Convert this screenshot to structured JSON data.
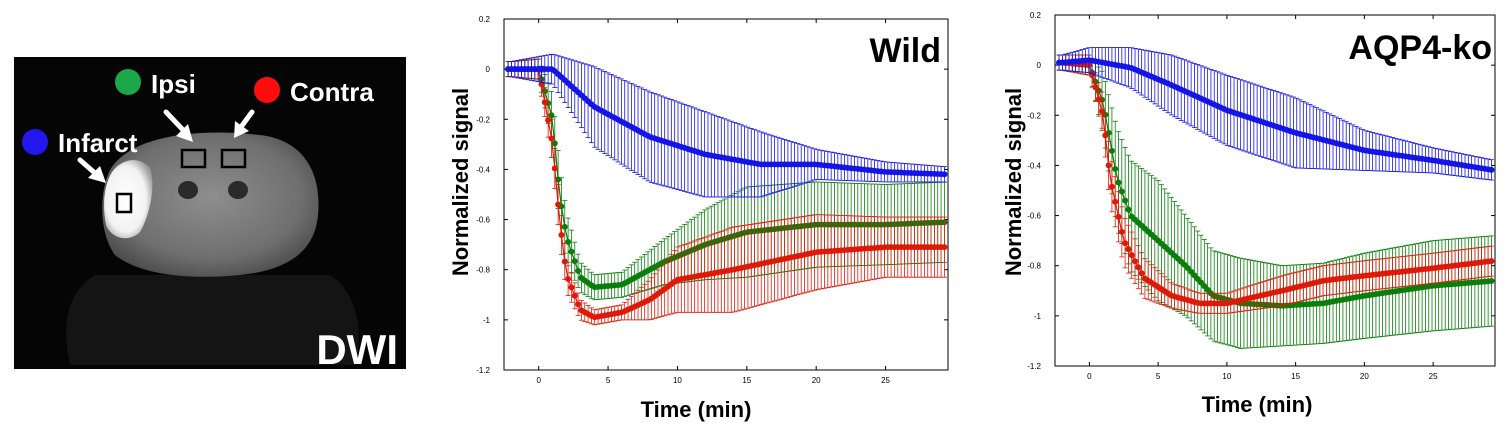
{
  "dwi_panel": {
    "legend": [
      {
        "label": "Ipsi",
        "color": "#1aa84a"
      },
      {
        "label": "Contra",
        "color": "#ff0d0d"
      },
      {
        "label": "Infarct",
        "color": "#2317f0"
      }
    ],
    "caption": "DWI"
  },
  "colors": {
    "infarct": "#1414e6",
    "ipsi": "#0a7d0a",
    "contra": "#dd1a08"
  },
  "chart_data": [
    {
      "type": "line",
      "title": "Wild",
      "xlabel": "Time (min)",
      "ylabel": "Normalized signal",
      "xlim": [
        -2.5,
        29.5
      ],
      "ylim": [
        -1.2,
        0.2
      ],
      "xticks": [
        0,
        5,
        10,
        15,
        20,
        25
      ],
      "yticks": [
        0.2,
        0,
        -0.2,
        -0.4,
        -0.6,
        -0.8,
        -1,
        -1.2
      ],
      "series": [
        {
          "name": "Infarct",
          "key": "infarct",
          "x": [
            -2,
            1,
            4,
            8,
            12,
            16,
            20,
            25,
            29.5
          ],
          "y": [
            0.0,
            0.0,
            -0.15,
            -0.27,
            -0.34,
            -0.38,
            -0.38,
            -0.41,
            -0.42
          ],
          "err": [
            0.03,
            0.06,
            0.16,
            0.18,
            0.17,
            0.13,
            0.06,
            0.04,
            0.03
          ]
        },
        {
          "name": "Ipsi",
          "key": "ipsi",
          "x": [
            -2,
            0,
            1,
            1.5,
            2,
            3,
            4,
            6,
            9,
            12,
            15,
            20,
            25,
            29.5
          ],
          "y": [
            0.0,
            0.0,
            -0.2,
            -0.5,
            -0.67,
            -0.83,
            -0.87,
            -0.86,
            -0.77,
            -0.7,
            -0.65,
            -0.62,
            -0.62,
            -0.61
          ],
          "err": [
            0.03,
            0.04,
            0.1,
            0.12,
            0.1,
            0.06,
            0.05,
            0.05,
            0.09,
            0.14,
            0.18,
            0.17,
            0.16,
            0.16
          ]
        },
        {
          "name": "Contra",
          "key": "contra",
          "x": [
            -2,
            0,
            1,
            1.5,
            2,
            3,
            4,
            6,
            8,
            10,
            14,
            20,
            25,
            29.5
          ],
          "y": [
            0.0,
            0.0,
            -0.3,
            -0.6,
            -0.82,
            -0.96,
            -0.99,
            -0.97,
            -0.92,
            -0.84,
            -0.8,
            -0.73,
            -0.71,
            -0.71
          ],
          "err": [
            0.03,
            0.04,
            0.08,
            0.08,
            0.07,
            0.04,
            0.03,
            0.03,
            0.08,
            0.13,
            0.17,
            0.15,
            0.12,
            0.12
          ]
        }
      ]
    },
    {
      "type": "line",
      "title": "AQP4-ko",
      "xlabel": "Time (min)",
      "ylabel": "Normalized signal",
      "xlim": [
        -2.5,
        29.5
      ],
      "ylim": [
        -1.2,
        0.2
      ],
      "xticks": [
        0,
        5,
        10,
        15,
        20,
        25
      ],
      "yticks": [
        0.2,
        0,
        -0.2,
        -0.4,
        -0.6,
        -0.8,
        -1,
        -1.2
      ],
      "series": [
        {
          "name": "Infarct",
          "key": "infarct",
          "x": [
            -2,
            0,
            3,
            6,
            10,
            15,
            20,
            25,
            29.5
          ],
          "y": [
            0.01,
            0.02,
            -0.01,
            -0.08,
            -0.18,
            -0.27,
            -0.34,
            -0.38,
            -0.42
          ],
          "err": [
            0.03,
            0.05,
            0.08,
            0.12,
            0.14,
            0.14,
            0.08,
            0.05,
            0.04
          ]
        },
        {
          "name": "Ipsi",
          "key": "ipsi",
          "x": [
            -2,
            0,
            1,
            2,
            3,
            5,
            7,
            9,
            11,
            14,
            17,
            20,
            25,
            29.5
          ],
          "y": [
            0.01,
            0.0,
            -0.15,
            -0.45,
            -0.6,
            -0.7,
            -0.8,
            -0.92,
            -0.95,
            -0.96,
            -0.95,
            -0.92,
            -0.88,
            -0.86
          ],
          "err": [
            0.03,
            0.04,
            0.12,
            0.2,
            0.22,
            0.24,
            0.2,
            0.18,
            0.18,
            0.16,
            0.16,
            0.17,
            0.18,
            0.18
          ]
        },
        {
          "name": "Contra",
          "key": "contra",
          "x": [
            -2,
            0,
            1,
            1.5,
            2.5,
            4,
            6,
            8,
            10,
            14,
            17,
            20,
            25,
            29.5
          ],
          "y": [
            0.01,
            0.0,
            -0.2,
            -0.45,
            -0.7,
            -0.85,
            -0.92,
            -0.95,
            -0.95,
            -0.9,
            -0.86,
            -0.84,
            -0.81,
            -0.78
          ],
          "err": [
            0.03,
            0.04,
            0.08,
            0.1,
            0.1,
            0.08,
            0.05,
            0.04,
            0.04,
            0.06,
            0.06,
            0.06,
            0.06,
            0.06
          ]
        }
      ]
    }
  ]
}
